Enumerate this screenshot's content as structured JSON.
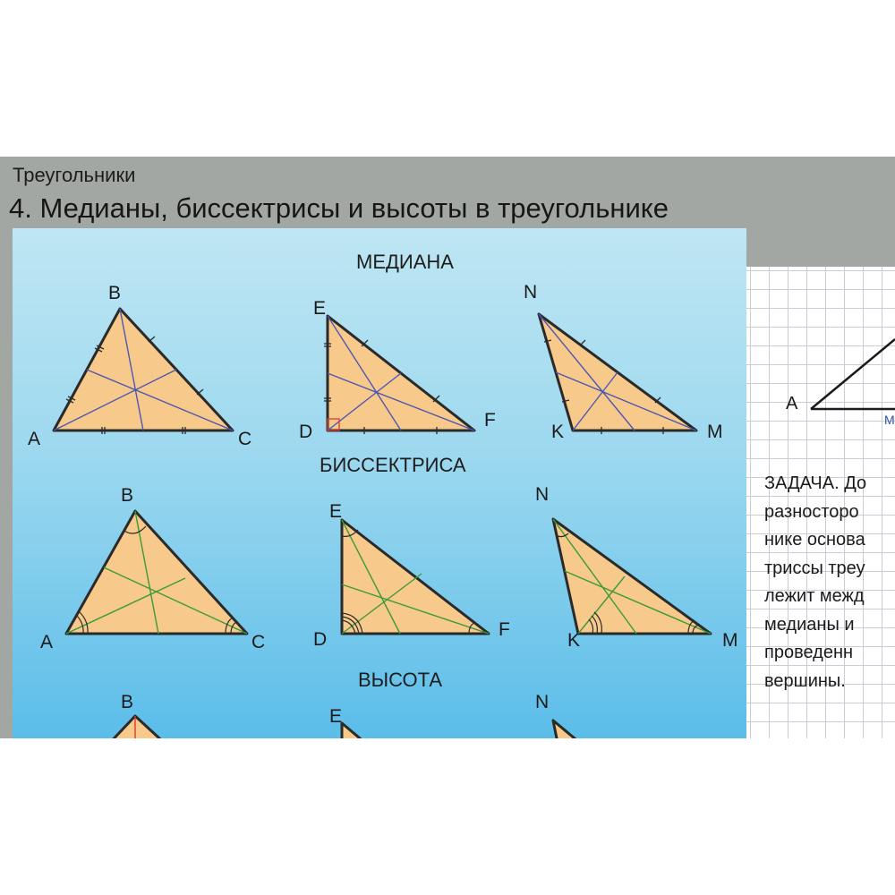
{
  "header": {
    "subtitle": "Треугольники",
    "title": "4. Медианы, биссектрисы и высоты в треугольнике"
  },
  "sections": {
    "median": "МЕДИАНА",
    "bisector": "БИССЕКТРИСА",
    "altitude": "ВЫСОТА"
  },
  "vertex_labels": {
    "A": "A",
    "B": "B",
    "C": "C",
    "D": "D",
    "E": "E",
    "F": "F",
    "K": "K",
    "M": "M",
    "N": "N"
  },
  "task_panel": {
    "point_label": "A",
    "segment_label": "M",
    "lines": [
      "ЗАДАЧА. До",
      "разносторо",
      "нике основа",
      "триссы треу",
      "лежит межд",
      "медианы и",
      "проведенн",
      "вершины."
    ]
  },
  "colors": {
    "triangle_fill": "#f7c98b",
    "median_line": "#4d58b0",
    "bisector_line": "#3a9a3a",
    "altitude_line": "#d93a3a"
  }
}
